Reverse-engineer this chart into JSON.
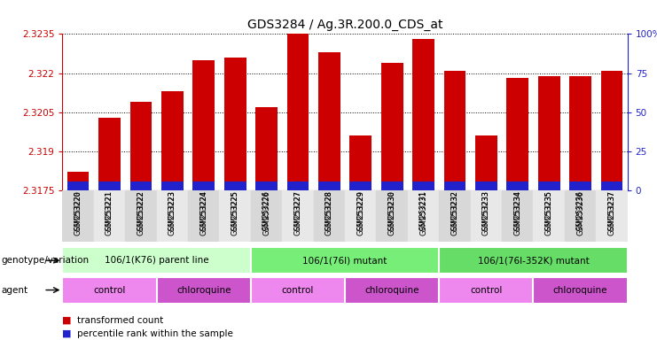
{
  "title": "GDS3284 / Ag.3R.200.0_CDS_at",
  "samples": [
    "GSM253220",
    "GSM253221",
    "GSM253222",
    "GSM253223",
    "GSM253224",
    "GSM253225",
    "GSM253226",
    "GSM253227",
    "GSM253228",
    "GSM253229",
    "GSM253230",
    "GSM253231",
    "GSM253232",
    "GSM253233",
    "GSM253234",
    "GSM253235",
    "GSM253236",
    "GSM253237"
  ],
  "transformed_count": [
    2.3182,
    2.3203,
    2.3209,
    2.3213,
    2.3225,
    2.3226,
    2.3207,
    2.3235,
    2.3228,
    2.3196,
    2.3224,
    2.3233,
    2.3221,
    2.3196,
    2.3218,
    2.3219,
    2.3219,
    2.3221
  ],
  "percentile_rank": [
    5,
    8,
    9,
    9,
    11,
    11,
    9,
    13,
    11,
    7,
    10,
    12,
    10,
    7,
    9,
    9,
    9,
    9
  ],
  "ymin": 2.3175,
  "ymax": 2.3235,
  "yticks": [
    2.3175,
    2.319,
    2.3205,
    2.322,
    2.3235
  ],
  "right_yticks": [
    0,
    25,
    50,
    75,
    100
  ],
  "bar_color": "#cc0000",
  "percentile_color": "#2222cc",
  "genotype_groups": [
    {
      "label": "106/1(K76) parent line",
      "start": 0,
      "end": 6,
      "color": "#ccffcc"
    },
    {
      "label": "106/1(76I) mutant",
      "start": 6,
      "end": 12,
      "color": "#77ee77"
    },
    {
      "label": "106/1(76I-352K) mutant",
      "start": 12,
      "end": 18,
      "color": "#66dd66"
    }
  ],
  "agent_groups": [
    {
      "label": "control",
      "start": 0,
      "end": 3,
      "color": "#ee88ee"
    },
    {
      "label": "chloroquine",
      "start": 3,
      "end": 6,
      "color": "#cc55cc"
    },
    {
      "label": "control",
      "start": 6,
      "end": 9,
      "color": "#ee88ee"
    },
    {
      "label": "chloroquine",
      "start": 9,
      "end": 12,
      "color": "#cc55cc"
    },
    {
      "label": "control",
      "start": 12,
      "end": 15,
      "color": "#ee88ee"
    },
    {
      "label": "chloroquine",
      "start": 15,
      "end": 18,
      "color": "#cc55cc"
    }
  ],
  "legend_items": [
    {
      "label": "transformed count",
      "color": "#cc0000"
    },
    {
      "label": "percentile rank within the sample",
      "color": "#2222cc"
    }
  ],
  "title_fontsize": 10,
  "tick_fontsize": 7.5,
  "sample_fontsize": 6.0,
  "left_tick_color": "#cc0000",
  "right_tick_color": "#2222cc",
  "geno_label": "genotype/variation",
  "agent_label": "agent"
}
